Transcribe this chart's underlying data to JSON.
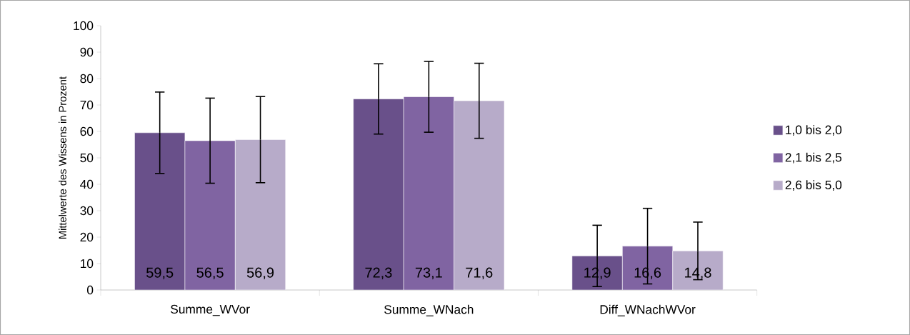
{
  "chart_data": {
    "type": "bar",
    "ylabel": "Mittelwerte des Wissens in Prozent",
    "categories": [
      "Summe_WVor",
      "Summe_WNach",
      "Diff_WNachWVor"
    ],
    "series": [
      {
        "name": "1,0 bis 2,0",
        "color": "#69508a",
        "values": [
          59.5,
          72.3,
          12.9
        ],
        "errors": [
          15.4,
          13.3,
          11.6
        ],
        "value_labels": [
          "59,5",
          "72,3",
          "12,9"
        ]
      },
      {
        "name": "2,1 bis 2,5",
        "color": "#8064a2",
        "values": [
          56.5,
          73.1,
          16.6
        ],
        "errors": [
          16.1,
          13.4,
          14.3
        ],
        "value_labels": [
          "56,5",
          "73,1",
          "16,6"
        ]
      },
      {
        "name": "2,6 bis 5,0",
        "color": "#b7abc9",
        "values": [
          56.9,
          71.6,
          14.8
        ],
        "errors": [
          16.3,
          14.2,
          10.9
        ],
        "value_labels": [
          "56,9",
          "71,6",
          "14,8"
        ]
      }
    ],
    "ylim": [
      0,
      100
    ],
    "yticks": [
      0,
      10,
      20,
      30,
      40,
      50,
      60,
      70,
      80,
      90,
      100
    ],
    "legend": "right"
  }
}
